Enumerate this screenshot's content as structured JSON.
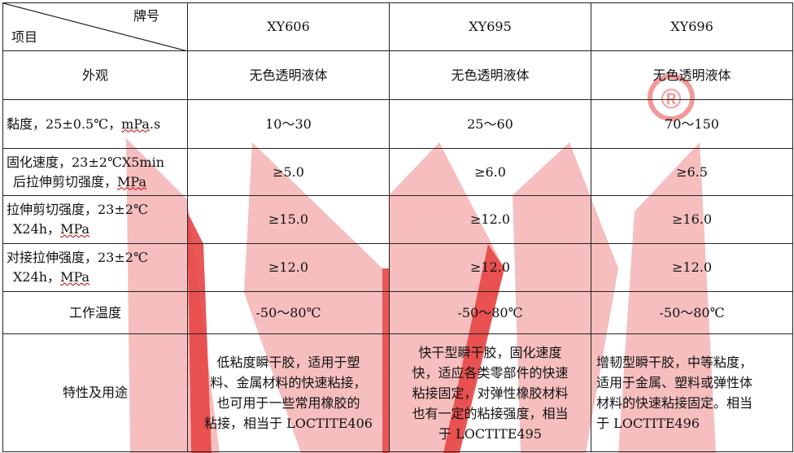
{
  "header": {
    "corner_top": "牌号",
    "corner_bottom": "项目",
    "products": [
      "XY606",
      "XY695",
      "XY696"
    ]
  },
  "rows": [
    {
      "label": "外观",
      "values": [
        "无色透明液体",
        "无色透明液体",
        "无色透明液体"
      ]
    },
    {
      "label_a": "黏度，25±0.5℃，",
      "label_b": "mPa",
      "label_c": ".s",
      "values": [
        "10～30",
        "25～60",
        "70～150"
      ]
    },
    {
      "label_line1": "固化速度，23±2℃X5min",
      "label_line2": "后拉伸剪切强度，",
      "label_unit": "MPa",
      "values": [
        "≥5.0",
        "≥6.0",
        "≥6.5"
      ]
    },
    {
      "label_line1": "拉伸剪切强度，23±2℃",
      "label_line2": "X24h，",
      "label_unit": "MPa",
      "values": [
        "≥15.0",
        "≥12.0",
        "≥16.0"
      ]
    },
    {
      "label_line1": "对接拉伸强度，23±2℃",
      "label_line2": "X24h，",
      "label_unit": "MPa",
      "values": [
        "≥12.0",
        "≥12.0",
        "≥12.0"
      ]
    },
    {
      "label": "工作温度",
      "values": [
        "-50～80℃",
        "-50～80℃",
        "-50～80℃"
      ]
    },
    {
      "label": "特性及用途",
      "values": [
        [
          "低粘度瞬干胶，适用于塑",
          "料、金属材料的快速粘接，",
          "也可用于一些常用橡胶的",
          "粘接，相当于 LOCTITE406"
        ],
        [
          "快干型瞬干胶，固化速度",
          "快，适应各类零部件的快速",
          "粘接固定，对弹性橡胶材料",
          "也有一定的粘接强度，相当",
          "于 LOCTITE495"
        ],
        [
          "增韧型瞬干胶，中等粘度，",
          "适用于金属、塑料或弹性体",
          "材料的快速粘接固定。相当",
          "于 LOCTITE496"
        ]
      ]
    }
  ],
  "watermark": {
    "color": "#f2a0a0",
    "mark": "®"
  }
}
